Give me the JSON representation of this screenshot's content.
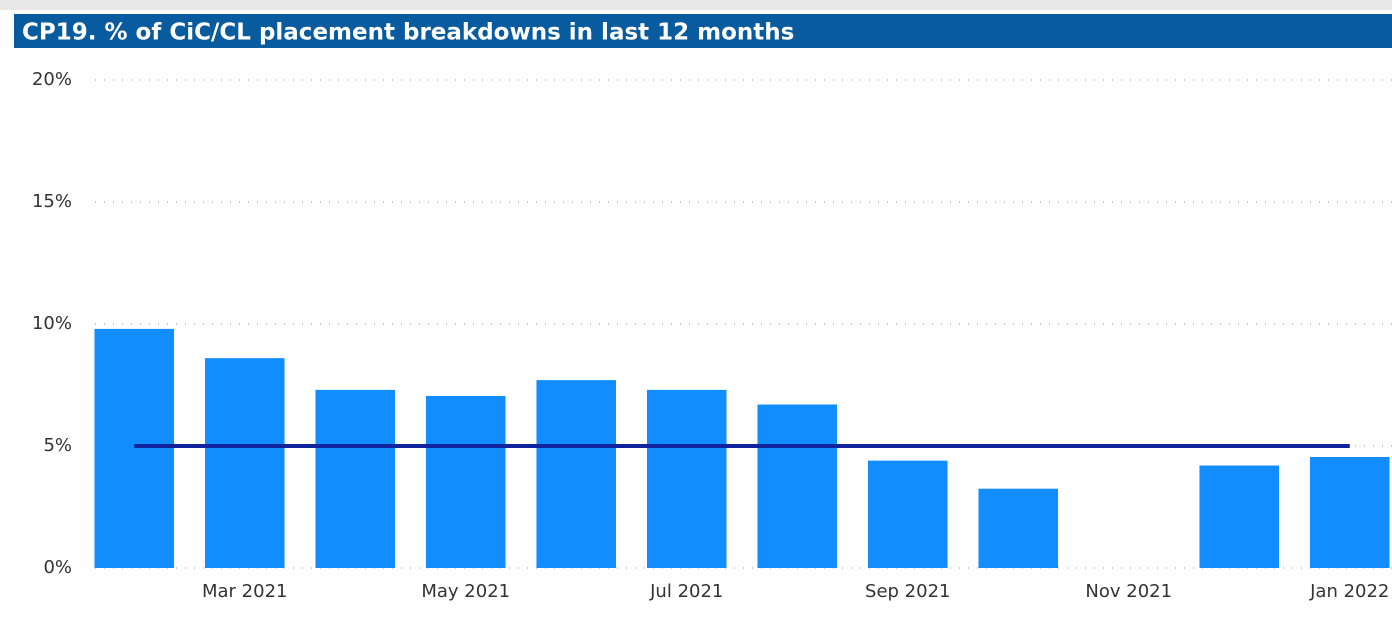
{
  "chart_data": {
    "type": "bar",
    "title": "CP19. % of CiC/CL placement breakdowns in last 12 months",
    "categories": [
      null,
      "Mar 2021",
      null,
      "May 2021",
      null,
      "Jul 2021",
      null,
      "Sep 2021",
      null,
      "Nov 2021",
      null,
      "Jan 2022"
    ],
    "values": [
      9.8,
      8.6,
      7.3,
      7.05,
      7.7,
      7.3,
      6.7,
      4.4,
      3.25,
      null,
      4.2,
      4.55
    ],
    "color": "#118dff",
    "target_line": {
      "value": 5,
      "color": "#12239e"
    },
    "ylim": [
      0,
      20
    ],
    "yticks": [
      {
        "value": 0,
        "label": "0%"
      },
      {
        "value": 5,
        "label": "5%"
      },
      {
        "value": 10,
        "label": "10%"
      },
      {
        "value": 15,
        "label": "15%"
      },
      {
        "value": 20,
        "label": "20%"
      }
    ],
    "grid": true
  }
}
